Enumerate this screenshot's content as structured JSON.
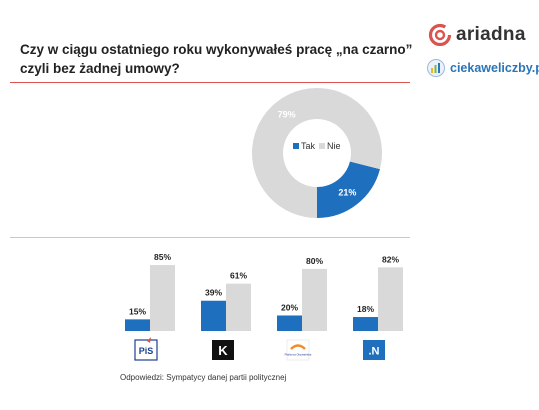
{
  "title": "Czy w ciągu ostatniego roku wykonywałeś pracę „na czarno” czyli bez żadnej umowy?",
  "brand": {
    "name": "ariadna",
    "site": "ciekaweliczby.pl"
  },
  "footnote": "Odpowiedzi: Sympatycy danej partii politycznej",
  "colors": {
    "tak": "#1f6fbf",
    "nie": "#d9d9d9",
    "accent": "#d9534f"
  },
  "chart_data": [
    {
      "type": "pie",
      "donut": true,
      "labels": [
        "Tak",
        "Nie"
      ],
      "values": [
        21,
        79
      ],
      "data_labels": [
        "21%",
        "79%"
      ],
      "legend": "center"
    },
    {
      "type": "bar",
      "categories": [
        "PiS",
        "Kukiz'15",
        "Platforma Obywatelska",
        ".N"
      ],
      "category_labels": [
        "PiS",
        "K",
        "Platforma Obywatelska",
        ".N"
      ],
      "series": [
        {
          "name": "Tak",
          "values": [
            15,
            39,
            20,
            18
          ],
          "data_labels": [
            "15%",
            "39%",
            "20%",
            "18%"
          ]
        },
        {
          "name": "Nie",
          "values": [
            85,
            61,
            80,
            82
          ],
          "data_labels": [
            "85%",
            "61%",
            "80%",
            "82%"
          ]
        }
      ],
      "ylim": [
        0,
        100
      ]
    }
  ]
}
